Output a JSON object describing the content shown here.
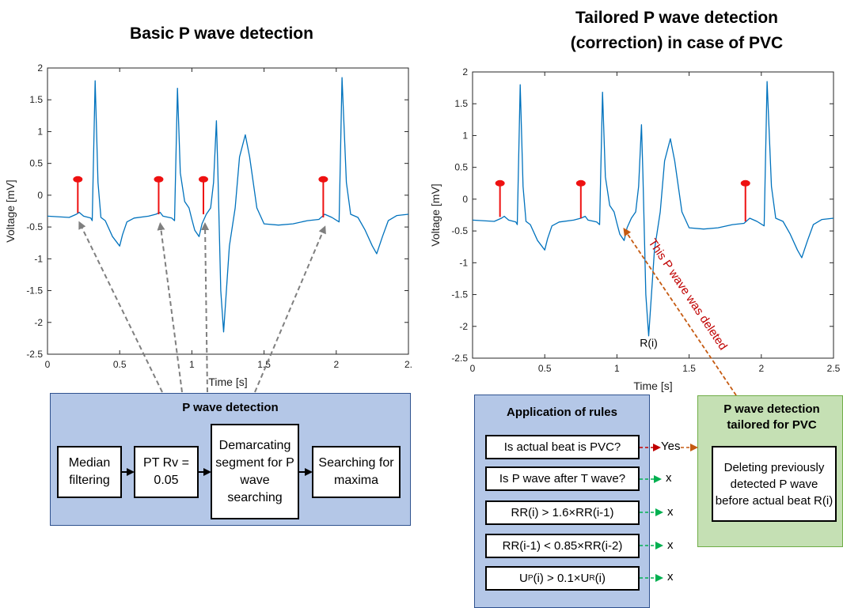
{
  "left_title": "Basic P wave detection",
  "right_title_line1": "Tailored P wave detection",
  "right_title_line2": "(correction) in case of PVC",
  "chart_data": [
    {
      "type": "line",
      "xlabel": "Time [s]",
      "ylabel": "Voltage [mV]",
      "xlim": [
        0,
        2.5
      ],
      "ylim": [
        -2.5,
        2
      ],
      "x_ticks": [
        "0",
        "0.5",
        "1",
        "1.5",
        "2",
        "2."
      ],
      "y_ticks": [
        "2",
        "1.5",
        "1",
        "0.5",
        "0",
        "-0.5",
        "-1",
        "-1.5",
        "-2",
        "-2.5"
      ],
      "series_color": "#0072BD",
      "ecg": [
        [
          0,
          -0.33
        ],
        [
          0.15,
          -0.35
        ],
        [
          0.2,
          -0.3
        ],
        [
          0.22,
          -0.27
        ],
        [
          0.25,
          -0.33
        ],
        [
          0.3,
          -0.36
        ],
        [
          0.31,
          -0.4
        ],
        [
          0.33,
          1.8
        ],
        [
          0.35,
          0.2
        ],
        [
          0.37,
          -0.35
        ],
        [
          0.4,
          -0.4
        ],
        [
          0.45,
          -0.65
        ],
        [
          0.5,
          -0.8
        ],
        [
          0.52,
          -0.62
        ],
        [
          0.55,
          -0.42
        ],
        [
          0.6,
          -0.36
        ],
        [
          0.7,
          -0.33
        ],
        [
          0.75,
          -0.3
        ],
        [
          0.78,
          -0.27
        ],
        [
          0.8,
          -0.33
        ],
        [
          0.86,
          -0.36
        ],
        [
          0.88,
          -0.4
        ],
        [
          0.9,
          1.68
        ],
        [
          0.92,
          0.35
        ],
        [
          0.95,
          -0.1
        ],
        [
          0.98,
          -0.2
        ],
        [
          1.0,
          -0.38
        ],
        [
          1.02,
          -0.55
        ],
        [
          1.05,
          -0.65
        ],
        [
          1.07,
          -0.45
        ],
        [
          1.1,
          -0.3
        ],
        [
          1.13,
          -0.2
        ],
        [
          1.15,
          0.2
        ],
        [
          1.17,
          1.17
        ],
        [
          1.18,
          0.4
        ],
        [
          1.2,
          -1.5
        ],
        [
          1.22,
          -2.15
        ],
        [
          1.26,
          -0.8
        ],
        [
          1.3,
          -0.2
        ],
        [
          1.33,
          0.6
        ],
        [
          1.37,
          0.95
        ],
        [
          1.4,
          0.6
        ],
        [
          1.45,
          -0.2
        ],
        [
          1.5,
          -0.45
        ],
        [
          1.6,
          -0.47
        ],
        [
          1.7,
          -0.45
        ],
        [
          1.8,
          -0.4
        ],
        [
          1.88,
          -0.38
        ],
        [
          1.92,
          -0.3
        ],
        [
          1.97,
          -0.35
        ],
        [
          2.02,
          -0.42
        ],
        [
          2.04,
          1.85
        ],
        [
          2.07,
          0.2
        ],
        [
          2.1,
          -0.3
        ],
        [
          2.15,
          -0.35
        ],
        [
          2.2,
          -0.55
        ],
        [
          2.25,
          -0.8
        ],
        [
          2.28,
          -0.92
        ],
        [
          2.32,
          -0.65
        ],
        [
          2.36,
          -0.4
        ],
        [
          2.42,
          -0.32
        ],
        [
          2.5,
          -0.3
        ]
      ],
      "p_markers": [
        [
          0.21,
          -0.28
        ],
        [
          0.77,
          -0.3
        ],
        [
          1.08,
          -0.3
        ],
        [
          1.91,
          -0.35
        ]
      ],
      "marker_top": 0.25,
      "marker_color": "#ee1111"
    },
    {
      "type": "line",
      "xlabel": "Time [s]",
      "ylabel": "Voltage [mV]",
      "xlim": [
        0,
        2.5
      ],
      "ylim": [
        -2.5,
        2
      ],
      "x_ticks": [
        "0",
        "0.5",
        "1",
        "1.5",
        "2",
        "2.5"
      ],
      "y_ticks": [
        "2",
        "1.5",
        "1",
        "0.5",
        "0",
        "-0.5",
        "-1",
        "-1.5",
        "-2",
        "-2.5"
      ],
      "series_color": "#0072BD",
      "ecg": [
        [
          0,
          -0.33
        ],
        [
          0.15,
          -0.35
        ],
        [
          0.2,
          -0.3
        ],
        [
          0.22,
          -0.27
        ],
        [
          0.25,
          -0.33
        ],
        [
          0.3,
          -0.36
        ],
        [
          0.31,
          -0.4
        ],
        [
          0.33,
          1.8
        ],
        [
          0.35,
          0.2
        ],
        [
          0.37,
          -0.35
        ],
        [
          0.4,
          -0.4
        ],
        [
          0.45,
          -0.65
        ],
        [
          0.5,
          -0.8
        ],
        [
          0.52,
          -0.62
        ],
        [
          0.55,
          -0.42
        ],
        [
          0.6,
          -0.36
        ],
        [
          0.7,
          -0.33
        ],
        [
          0.75,
          -0.3
        ],
        [
          0.78,
          -0.27
        ],
        [
          0.8,
          -0.33
        ],
        [
          0.86,
          -0.36
        ],
        [
          0.88,
          -0.4
        ],
        [
          0.9,
          1.68
        ],
        [
          0.92,
          0.35
        ],
        [
          0.95,
          -0.1
        ],
        [
          0.98,
          -0.2
        ],
        [
          1.0,
          -0.38
        ],
        [
          1.02,
          -0.55
        ],
        [
          1.05,
          -0.65
        ],
        [
          1.07,
          -0.45
        ],
        [
          1.1,
          -0.3
        ],
        [
          1.13,
          -0.2
        ],
        [
          1.15,
          0.2
        ],
        [
          1.17,
          1.17
        ],
        [
          1.18,
          0.4
        ],
        [
          1.2,
          -1.5
        ],
        [
          1.22,
          -2.15
        ],
        [
          1.26,
          -0.8
        ],
        [
          1.3,
          -0.2
        ],
        [
          1.33,
          0.6
        ],
        [
          1.37,
          0.95
        ],
        [
          1.4,
          0.6
        ],
        [
          1.45,
          -0.2
        ],
        [
          1.5,
          -0.45
        ],
        [
          1.6,
          -0.47
        ],
        [
          1.7,
          -0.45
        ],
        [
          1.8,
          -0.4
        ],
        [
          1.88,
          -0.38
        ],
        [
          1.92,
          -0.3
        ],
        [
          1.97,
          -0.35
        ],
        [
          2.02,
          -0.42
        ],
        [
          2.04,
          1.85
        ],
        [
          2.07,
          0.2
        ],
        [
          2.1,
          -0.3
        ],
        [
          2.15,
          -0.35
        ],
        [
          2.2,
          -0.55
        ],
        [
          2.25,
          -0.8
        ],
        [
          2.28,
          -0.92
        ],
        [
          2.32,
          -0.65
        ],
        [
          2.36,
          -0.4
        ],
        [
          2.42,
          -0.32
        ],
        [
          2.5,
          -0.3
        ]
      ],
      "p_markers": [
        [
          0.19,
          -0.28
        ],
        [
          0.75,
          -0.3
        ],
        [
          1.89,
          -0.35
        ]
      ],
      "marker_top": 0.25,
      "marker_color": "#ee1111",
      "annotation": "R(i)",
      "deleted_label": "This P wave was deleted"
    }
  ],
  "detection": {
    "title": "P wave detection",
    "steps": [
      "Median filtering",
      "PT Rv = 0.05",
      "Demarcating segment for P wave searching",
      "Searching for maxima"
    ]
  },
  "rules": {
    "title": "Application of rules",
    "items": [
      {
        "text": "Is actual beat is PVC?",
        "result": "Yes"
      },
      {
        "text": "Is P wave after T wave?",
        "result": "x"
      },
      {
        "text": "RR(i) > 1.6×RR(i-1)",
        "result": "x"
      },
      {
        "text": "RR(i-1) < 0.85×RR(i-2)",
        "result": "x"
      },
      {
        "text": "U_P(i) > 0.1×U_R(i)",
        "result": "x"
      }
    ]
  },
  "tailored": {
    "title": "P wave detection tailored for PVC",
    "box_text": "Deleting previously detected P wave before actual beat R(i)"
  },
  "colors": {
    "panel_blue": "#b4c7e7",
    "panel_blue_border": "#2f528f",
    "panel_green": "#c5e0b4",
    "panel_green_border": "#70ad47",
    "arrow_red": "#c00000",
    "arrow_green": "#00b050",
    "arrow_orange": "#c55a11",
    "gray_arrow": "#7f7f7f"
  }
}
